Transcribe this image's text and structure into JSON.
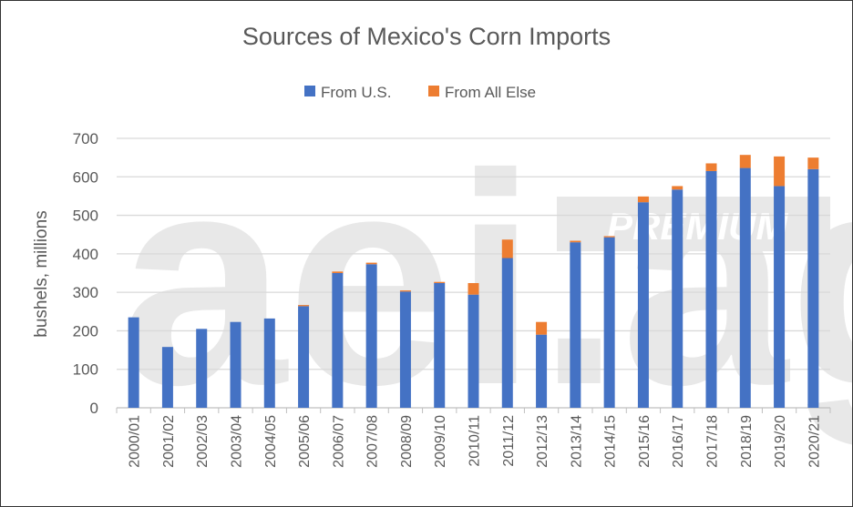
{
  "chart_data": {
    "type": "stacked-bar",
    "title": "Sources of Mexico's Corn Imports",
    "xlabel": "",
    "ylabel": "bushels, millions",
    "ylim": [
      0,
      700
    ],
    "yticks": [
      0,
      100,
      200,
      300,
      400,
      500,
      600,
      700
    ],
    "grid": true,
    "legend_position": "top",
    "categories": [
      "2000/01",
      "2001/02",
      "2002/03",
      "2003/04",
      "2004/05",
      "2005/06",
      "2006/07",
      "2007/08",
      "2008/09",
      "2009/10",
      "2010/11",
      "2011/12",
      "2012/13",
      "2013/14",
      "2014/15",
      "2015/16",
      "2016/17",
      "2017/18",
      "2018/19",
      "2019/20",
      "2020/21"
    ],
    "series": [
      {
        "name": "From U.S.",
        "color": "#4472C4",
        "values": [
          235,
          158,
          205,
          223,
          232,
          264,
          350,
          373,
          302,
          324,
          294,
          389,
          190,
          430,
          443,
          534,
          567,
          615,
          623,
          576,
          620
        ]
      },
      {
        "name": "From All Else",
        "color": "#ED7D31",
        "values": [
          0,
          0,
          0,
          0,
          0,
          3,
          4,
          4,
          3,
          3,
          30,
          48,
          33,
          4,
          3,
          15,
          9,
          20,
          34,
          77,
          30
        ]
      }
    ]
  },
  "watermark": {
    "logo": "aei.ag",
    "badge": "PREMIUM"
  }
}
